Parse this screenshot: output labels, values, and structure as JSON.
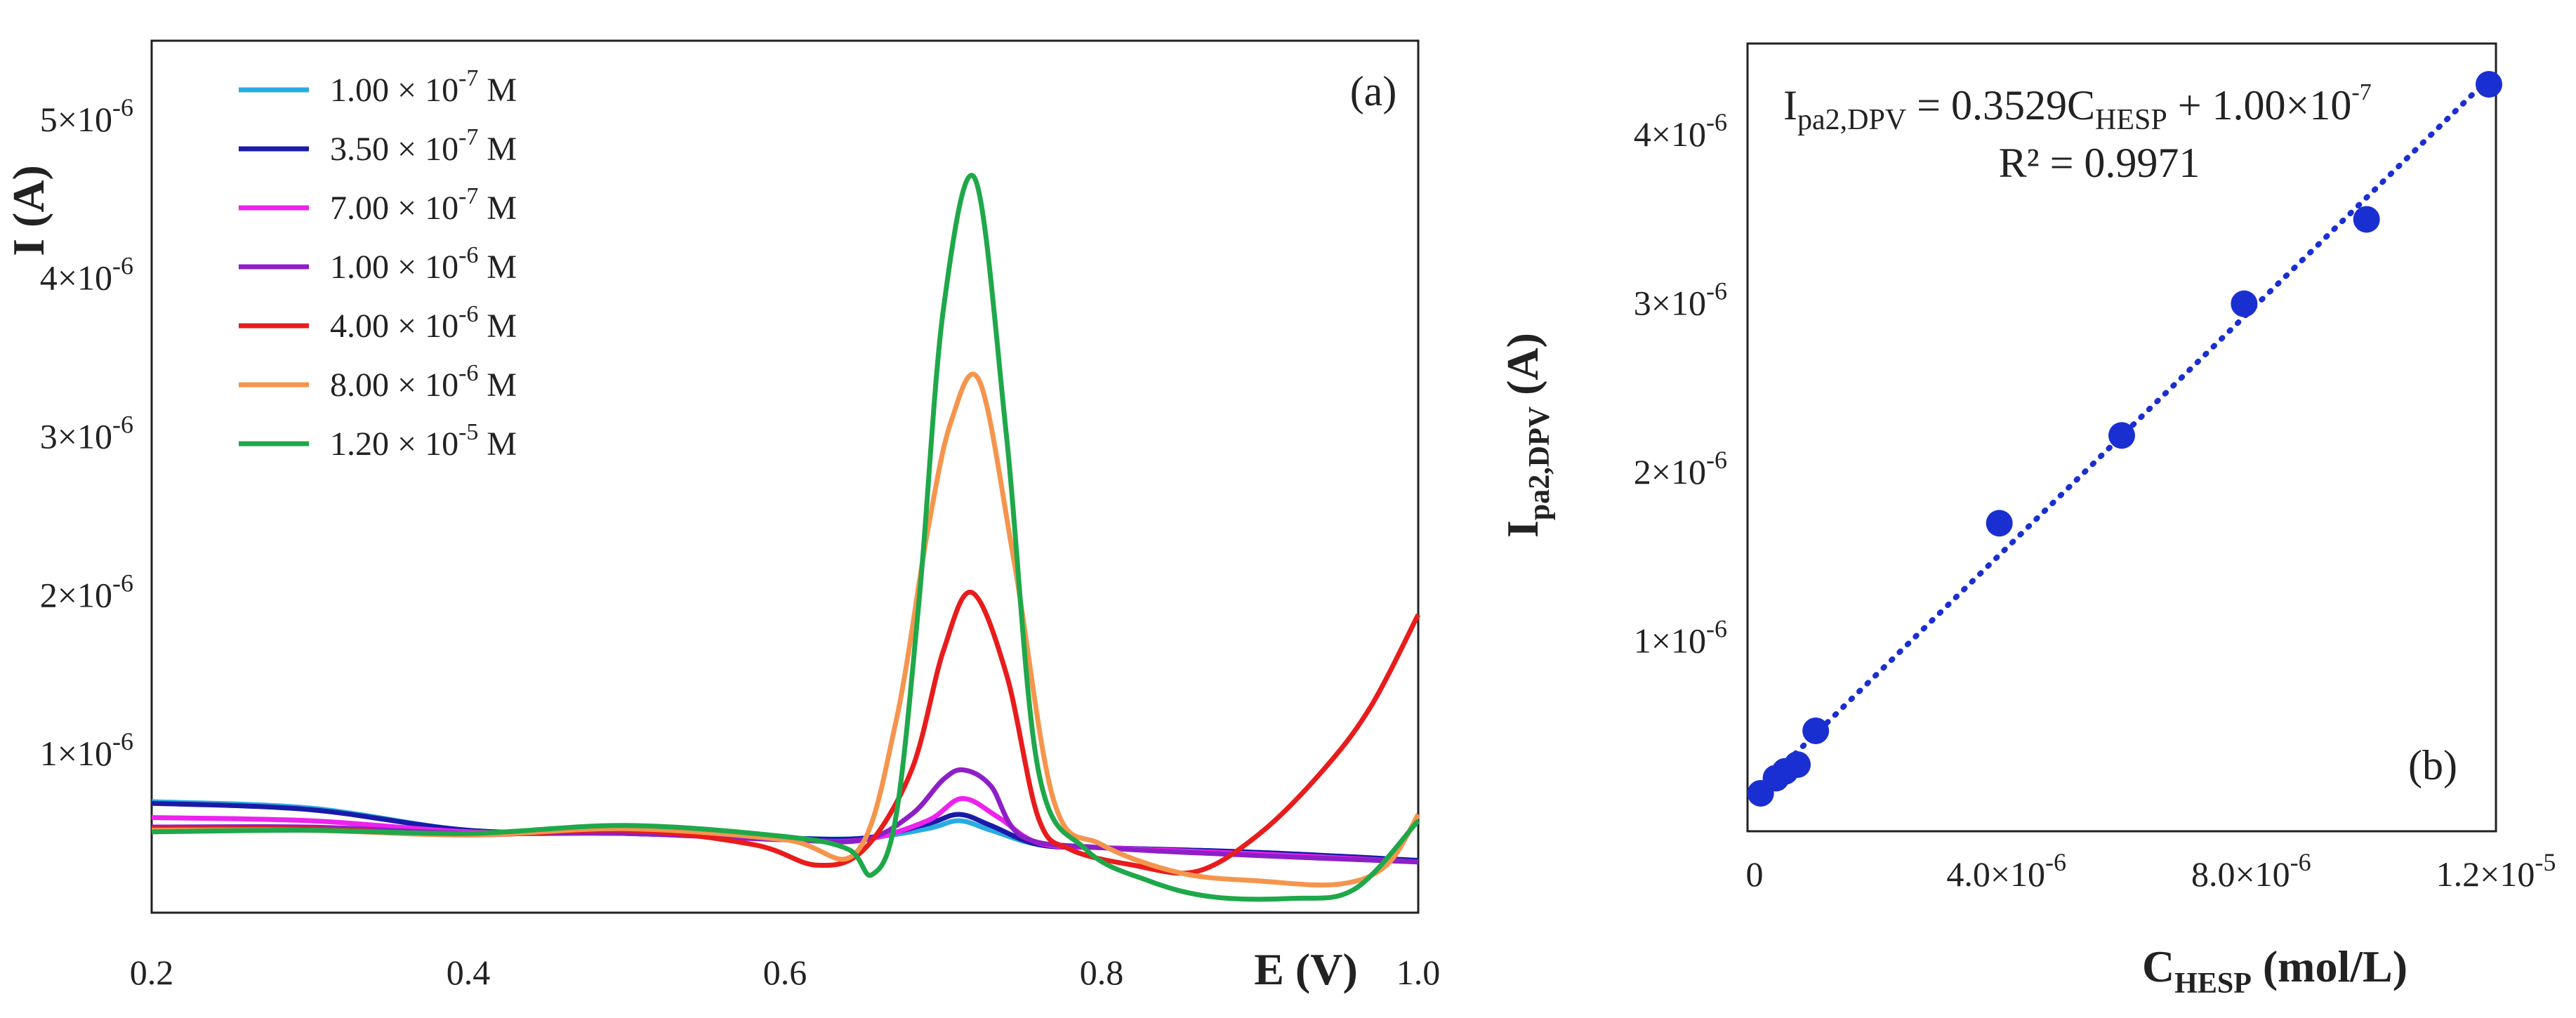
{
  "chart_data": [
    {
      "type": "line",
      "panel_label": "(a)",
      "xlabel": "E (V)",
      "ylabel": "I (A)",
      "xlim": [
        0.2,
        1.0
      ],
      "ylim": [
        0,
        5.5e-06
      ],
      "x_ticks": [
        {
          "value": 0.2,
          "label": "0.2"
        },
        {
          "value": 0.4,
          "label": "0.4"
        },
        {
          "value": 0.6,
          "label": "0.6"
        },
        {
          "value": 0.8,
          "label": "0.8"
        },
        {
          "value": 1.0,
          "label": "1.0"
        }
      ],
      "y_ticks": [
        {
          "value": 1e-06,
          "mant": "1×10",
          "exp": "-6"
        },
        {
          "value": 2e-06,
          "mant": "2×10",
          "exp": "-6"
        },
        {
          "value": 3e-06,
          "mant": "3×10",
          "exp": "-6"
        },
        {
          "value": 4e-06,
          "mant": "4×10",
          "exp": "-6"
        },
        {
          "value": 5e-06,
          "mant": "5×10",
          "exp": "-6"
        }
      ],
      "series": [
        {
          "name": "1.00 × 10-7 M",
          "mant": "1.00 × 10",
          "exp": "-7",
          "unit": " M",
          "color": "#29abe2",
          "x": [
            0.2,
            0.3,
            0.4,
            0.5,
            0.6,
            0.65,
            0.69,
            0.71,
            0.73,
            0.76,
            0.8,
            0.9,
            1.0
          ],
          "y": [
            7e-07,
            6.6e-07,
            5.2e-07,
            5e-07,
            4.7e-07,
            4.7e-07,
            5.3e-07,
            5.8e-07,
            5.2e-07,
            4.3e-07,
            4.1e-07,
            3.8e-07,
            3.3e-07
          ]
        },
        {
          "name": "3.50 × 10-7 M",
          "mant": "3.50 × 10",
          "exp": "-7",
          "unit": " M",
          "color": "#1a1aa8",
          "x": [
            0.2,
            0.3,
            0.4,
            0.5,
            0.6,
            0.65,
            0.69,
            0.71,
            0.73,
            0.76,
            0.8,
            0.9,
            1.0
          ],
          "y": [
            6.9e-07,
            6.5e-07,
            5.2e-07,
            5e-07,
            4.7e-07,
            4.7e-07,
            5.6e-07,
            6.2e-07,
            5.5e-07,
            4.3e-07,
            4.1e-07,
            3.8e-07,
            3.3e-07
          ]
        },
        {
          "name": "7.00 × 10-7 M",
          "mant": "7.00 × 10",
          "exp": "-7",
          "unit": " M",
          "color": "#ee22ee",
          "x": [
            0.2,
            0.3,
            0.4,
            0.5,
            0.6,
            0.65,
            0.69,
            0.712,
            0.735,
            0.76,
            0.8,
            0.9,
            1.0
          ],
          "y": [
            6e-07,
            5.8e-07,
            5.1e-07,
            5e-07,
            4.6e-07,
            4.6e-07,
            5.8e-07,
            7.2e-07,
            6e-07,
            4.4e-07,
            4.1e-07,
            3.7e-07,
            3.2e-07
          ]
        },
        {
          "name": "1.00 × 10-6 M",
          "mant": "1.00 × 10",
          "exp": "-6",
          "unit": " M",
          "color": "#8e1fc7",
          "x": [
            0.2,
            0.3,
            0.4,
            0.5,
            0.6,
            0.65,
            0.68,
            0.7,
            0.713,
            0.73,
            0.75,
            0.8,
            0.9,
            1.0
          ],
          "y": [
            5.4e-07,
            5.4e-07,
            5e-07,
            5e-07,
            4.6e-07,
            4.6e-07,
            6.2e-07,
            8.4e-07,
            9e-07,
            8e-07,
            4.8e-07,
            4.1e-07,
            3.6e-07,
            3.2e-07
          ]
        },
        {
          "name": "4.00 × 10-6 M",
          "mant": "4.00 × 10",
          "exp": "-6",
          "unit": " M",
          "color": "#e81c1c",
          "x": [
            0.2,
            0.3,
            0.4,
            0.5,
            0.58,
            0.62,
            0.65,
            0.68,
            0.7,
            0.718,
            0.74,
            0.76,
            0.78,
            0.82,
            0.86,
            0.9,
            0.94,
            0.97,
            1.0
          ],
          "y": [
            5.3e-07,
            5.3e-07,
            4.9e-07,
            5.2e-07,
            4.3e-07,
            3e-07,
            4e-07,
            9e-07,
            1.65e-06,
            2.02e-06,
            1.5e-06,
            6e-07,
            4e-07,
            3e-07,
            2.6e-07,
            5e-07,
            9e-07,
            1.3e-06,
            1.88e-06
          ]
        },
        {
          "name": "8.00 × 10-6 M",
          "mant": "8.00 × 10",
          "exp": "-6",
          "unit": " M",
          "color": "#f5954d",
          "x": [
            0.2,
            0.3,
            0.4,
            0.5,
            0.6,
            0.645,
            0.67,
            0.69,
            0.705,
            0.723,
            0.745,
            0.77,
            0.8,
            0.85,
            0.9,
            0.95,
            0.98,
            1.0
          ],
          "y": [
            5.2e-07,
            5.2e-07,
            4.9e-07,
            5.3e-07,
            4.6e-07,
            3.8e-07,
            1.2e-06,
            2.4e-06,
            3.1e-06,
            3.35e-06,
            2.2e-06,
            7e-07,
            4.3e-07,
            2.5e-07,
            2e-07,
            1.8e-07,
            3e-07,
            6.2e-07
          ]
        },
        {
          "name": "1.20 × 10-5 M",
          "mant": "1.20 × 10",
          "exp": "-5",
          "unit": " M",
          "color": "#1fa84a",
          "x": [
            0.2,
            0.3,
            0.4,
            0.5,
            0.6,
            0.64,
            0.655,
            0.67,
            0.685,
            0.7,
            0.72,
            0.74,
            0.76,
            0.79,
            0.83,
            0.87,
            0.92,
            0.96,
            1.0
          ],
          "y": [
            5.1e-07,
            5.2e-07,
            5e-07,
            5.5e-07,
            4.8e-07,
            4e-07,
            2.4e-07,
            6e-07,
            2e-06,
            3.8e-06,
            4.63e-06,
            3e-06,
            9e-07,
            4e-07,
            2e-07,
            1e-07,
            9e-08,
            1.5e-07,
            5.8e-07
          ]
        }
      ]
    },
    {
      "type": "scatter",
      "panel_label": "(b)",
      "xlabel_main": "C",
      "xlabel_sub": "HESP",
      "xlabel_unit": " (mol/L)",
      "ylabel_main": "I",
      "ylabel_sub": "pa2,DPV",
      "ylabel_unit": " (A)",
      "xlim": [
        0,
        1.2e-05
      ],
      "ylim": [
        0,
        4.5e-06
      ],
      "x_ticks": [
        {
          "value": 0,
          "mant": "0",
          "exp": ""
        },
        {
          "value": 4e-06,
          "mant": "4.0×10",
          "exp": "-6"
        },
        {
          "value": 8e-06,
          "mant": "8.0×10",
          "exp": "-6"
        },
        {
          "value": 1.2e-05,
          "mant": "1.2×10",
          "exp": "-5"
        }
      ],
      "y_ticks": [
        {
          "value": 1e-06,
          "mant": "1×10",
          "exp": "-6"
        },
        {
          "value": 2e-06,
          "mant": "2×10",
          "exp": "-6"
        },
        {
          "value": 3e-06,
          "mant": "3×10",
          "exp": "-6"
        },
        {
          "value": 4e-06,
          "mant": "4×10",
          "exp": "-6"
        }
      ],
      "points_x": [
        1e-07,
        3.5e-07,
        5e-07,
        7e-07,
        1e-06,
        4e-06,
        6e-06,
        8e-06,
        1e-05,
        1.2e-05
      ],
      "points_y": [
        1e-07,
        1.9e-07,
        2.3e-07,
        2.7e-07,
        4.7e-07,
        1.7e-06,
        2.22e-06,
        3e-06,
        3.5e-06,
        4.3e-06
      ],
      "fit": {
        "slope": 0.3529,
        "intercept": 1e-07,
        "x_start": 0,
        "x_end": 1.2e-05
      },
      "equation": {
        "lhs_main": "I",
        "lhs_sub": "pa2,DPV",
        "mid": " = 0.3529C",
        "mid_sub": "HESP",
        "rhs": " + 1.00×10",
        "rhs_exp": "-7",
        "r2": "R² = 0.9971"
      },
      "marker_color": "#1a2fd1",
      "line_color": "#1a2fd1"
    }
  ]
}
